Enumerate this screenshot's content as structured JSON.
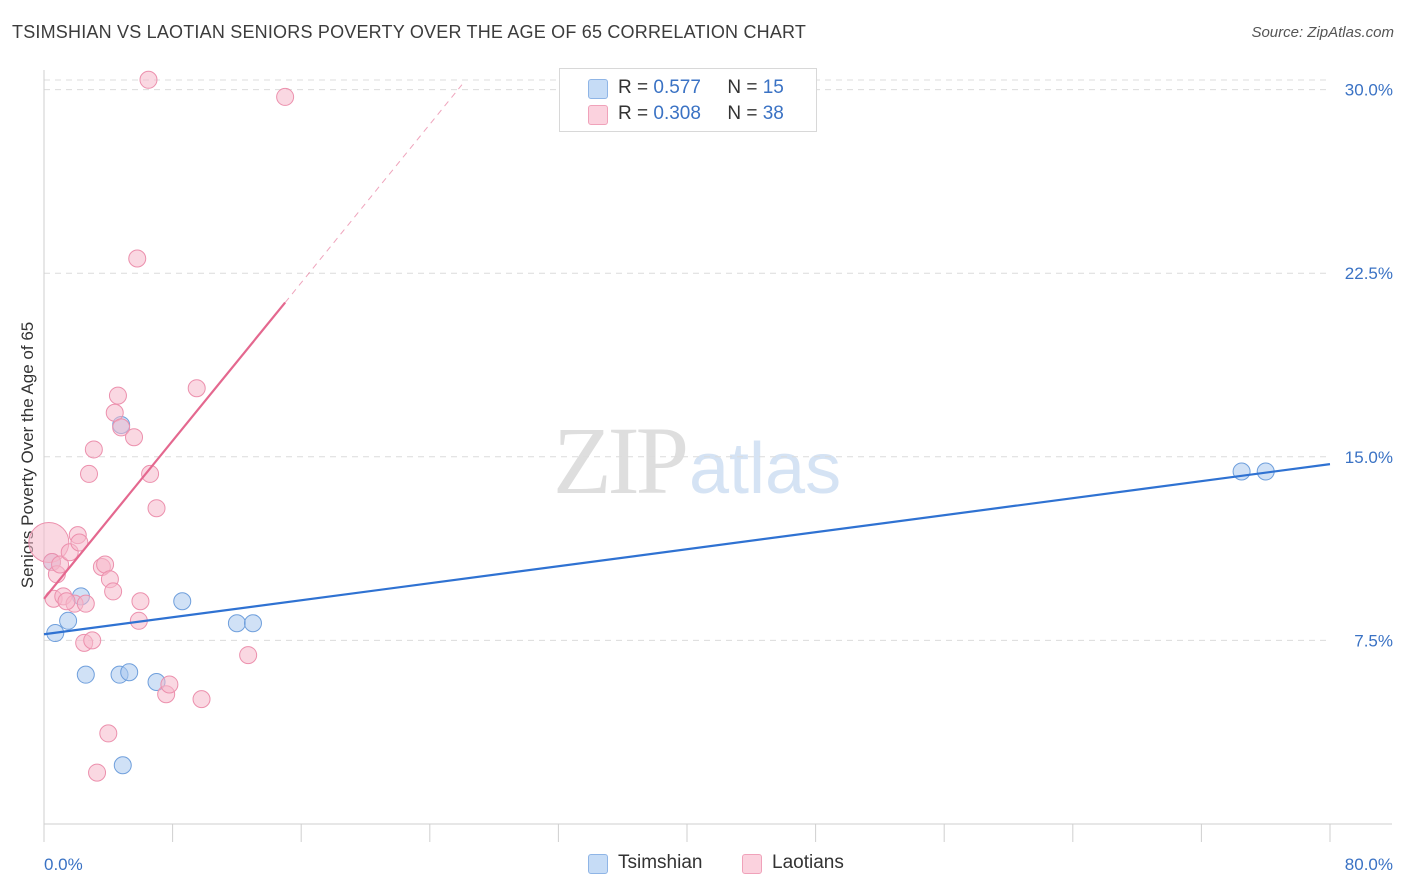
{
  "header": {
    "title": "TSIMSHIAN VS LAOTIAN SENIORS POVERTY OVER THE AGE OF 65 CORRELATION CHART",
    "source": "Source: ZipAtlas.com"
  },
  "watermark": {
    "zip": "ZIP",
    "atlas": "atlas"
  },
  "legend": {
    "rows": [
      {
        "r_label": "R =",
        "r_value": "0.577",
        "n_label": "N =",
        "n_value": "15",
        "color": "#a9c8ef"
      },
      {
        "r_label": "R =",
        "r_value": "0.308",
        "n_label": "N =",
        "n_value": "38",
        "color": "#f6b8cb"
      }
    ]
  },
  "bottom_legend": {
    "items": [
      {
        "label": "Tsimshian",
        "color": "#a9c8ef"
      },
      {
        "label": "Laotians",
        "color": "#f6b8cb"
      }
    ]
  },
  "chart_data": {
    "type": "scatter",
    "title": "TSIMSHIAN VS LAOTIAN SENIORS POVERTY OVER THE AGE OF 65 CORRELATION CHART",
    "xlabel": "",
    "ylabel": "Seniors Poverty Over the Age of 65",
    "xlim": [
      0,
      80
    ],
    "ylim": [
      0,
      30.8
    ],
    "x_tick_labels": [
      "0.0%",
      "80.0%"
    ],
    "y_ticks": [
      7.5,
      15.0,
      22.5,
      30.0
    ],
    "y_tick_labels": [
      "7.5%",
      "15.0%",
      "22.5%",
      "30.0%"
    ],
    "grid": true,
    "series": [
      {
        "name": "Tsimshian",
        "color": "#a9c8ef",
        "stroke": "#6f9fdc",
        "line_color": "#2f72d2",
        "points": [
          {
            "x": 0.5,
            "y": 10.7
          },
          {
            "x": 1.5,
            "y": 8.3
          },
          {
            "x": 2.3,
            "y": 9.3
          },
          {
            "x": 0.7,
            "y": 7.8
          },
          {
            "x": 2.6,
            "y": 6.1
          },
          {
            "x": 4.8,
            "y": 16.3
          },
          {
            "x": 4.7,
            "y": 6.1
          },
          {
            "x": 5.3,
            "y": 6.2
          },
          {
            "x": 4.9,
            "y": 2.4
          },
          {
            "x": 7.0,
            "y": 5.8
          },
          {
            "x": 8.6,
            "y": 9.1
          },
          {
            "x": 12.0,
            "y": 8.2
          },
          {
            "x": 13.0,
            "y": 8.2
          },
          {
            "x": 74.5,
            "y": 14.4
          },
          {
            "x": 76.0,
            "y": 14.4
          }
        ],
        "trend": {
          "x0": 0,
          "y0": 7.75,
          "x1": 80,
          "y1": 14.7
        }
      },
      {
        "name": "Laotians",
        "color": "#f6b8cb",
        "stroke": "#ec90ad",
        "line_color": "#e4688f",
        "points": [
          {
            "x": 0.3,
            "y": 11.5
          },
          {
            "x": 0.5,
            "y": 10.7
          },
          {
            "x": 0.6,
            "y": 9.2
          },
          {
            "x": 0.8,
            "y": 10.2
          },
          {
            "x": 1.0,
            "y": 10.6
          },
          {
            "x": 1.2,
            "y": 9.3
          },
          {
            "x": 1.6,
            "y": 11.1
          },
          {
            "x": 1.9,
            "y": 9.0
          },
          {
            "x": 2.1,
            "y": 11.8
          },
          {
            "x": 2.2,
            "y": 11.5
          },
          {
            "x": 2.5,
            "y": 7.4
          },
          {
            "x": 2.6,
            "y": 9.0
          },
          {
            "x": 2.8,
            "y": 14.3
          },
          {
            "x": 3.0,
            "y": 7.5
          },
          {
            "x": 3.1,
            "y": 15.3
          },
          {
            "x": 3.3,
            "y": 2.1
          },
          {
            "x": 3.6,
            "y": 10.5
          },
          {
            "x": 3.8,
            "y": 10.6
          },
          {
            "x": 4.0,
            "y": 3.7
          },
          {
            "x": 4.1,
            "y": 10.0
          },
          {
            "x": 4.3,
            "y": 9.5
          },
          {
            "x": 4.4,
            "y": 16.8
          },
          {
            "x": 4.6,
            "y": 17.5
          },
          {
            "x": 4.8,
            "y": 16.2
          },
          {
            "x": 5.6,
            "y": 15.8
          },
          {
            "x": 5.8,
            "y": 23.1
          },
          {
            "x": 5.9,
            "y": 8.3
          },
          {
            "x": 6.0,
            "y": 9.1
          },
          {
            "x": 6.5,
            "y": 30.4
          },
          {
            "x": 6.6,
            "y": 14.3
          },
          {
            "x": 7.0,
            "y": 12.9
          },
          {
            "x": 7.6,
            "y": 5.3
          },
          {
            "x": 7.8,
            "y": 5.7
          },
          {
            "x": 9.5,
            "y": 17.8
          },
          {
            "x": 9.8,
            "y": 5.1
          },
          {
            "x": 12.7,
            "y": 6.9
          },
          {
            "x": 15.0,
            "y": 29.7
          },
          {
            "x": 1.4,
            "y": 9.1
          }
        ],
        "trend": {
          "x0": 0,
          "y0": 9.2,
          "x1": 15.0,
          "y1": 21.3
        },
        "trend_extension": {
          "x0": 15.0,
          "y0": 21.3,
          "x1": 26.0,
          "y1": 30.2
        }
      }
    ]
  }
}
